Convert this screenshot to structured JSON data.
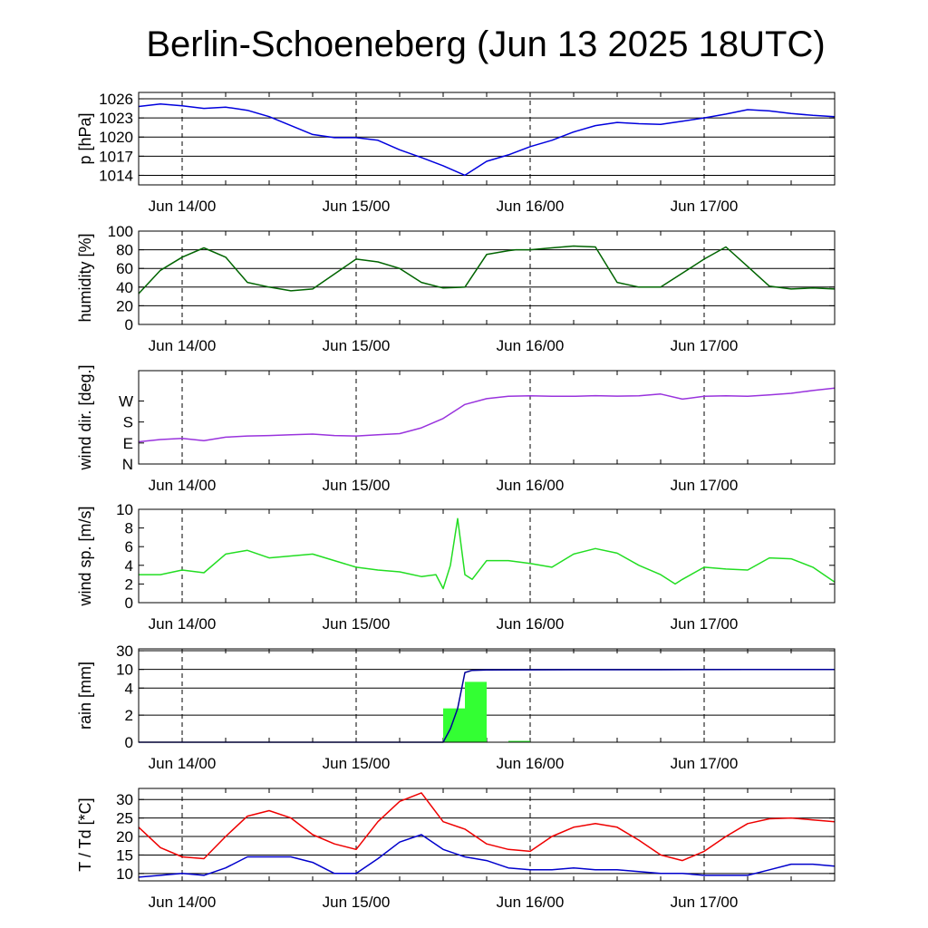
{
  "title": "Berlin-Schoeneberg (Jun 13 2025 18UTC)",
  "chart_data": {
    "type": "line",
    "x_tick_labels": [
      "Jun 14/00",
      "Jun 15/00",
      "Jun 16/00",
      "Jun 17/00"
    ],
    "x_range": [
      "2025-06-13 18:00",
      "2025-06-17 18:00"
    ],
    "panels": [
      {
        "id": "pressure",
        "type": "line",
        "ylabel": "p [hPa]",
        "ylim": [
          1012.5,
          1027
        ],
        "ytick_labels": [
          "1026",
          "1023",
          "1020",
          "1017",
          "1014"
        ],
        "ytick_values": [
          1026,
          1023,
          1020,
          1017,
          1014
        ],
        "grid": true,
        "series": [
          {
            "color": "#0000dd",
            "x_hours": [
              0,
              3,
              6,
              9,
              12,
              15,
              18,
              21,
              24,
              27,
              30,
              33,
              36,
              39,
              42,
              45,
              48,
              51,
              54,
              57,
              60,
              63,
              66,
              69,
              72,
              75,
              78,
              81,
              84,
              87,
              90,
              93,
              96
            ],
            "values": [
              1024.8,
              1025.2,
              1024.9,
              1024.5,
              1024.7,
              1024.2,
              1023.2,
              1021.8,
              1020.4,
              1019.9,
              1019.9,
              1019.5,
              1018.0,
              1016.8,
              1015.5,
              1014.0,
              1016.2,
              1017.2,
              1018.5,
              1019.5,
              1020.8,
              1021.8,
              1022.3,
              1022.1,
              1022.0,
              1022.5,
              1023.0,
              1023.6,
              1024.3,
              1024.1,
              1023.7,
              1023.4,
              1023.2
            ]
          }
        ]
      },
      {
        "id": "humidity",
        "type": "line",
        "ylabel": "humidity [%]",
        "ylim": [
          0,
          100
        ],
        "ytick_labels": [
          "100",
          "80",
          "60",
          "40",
          "20",
          "0"
        ],
        "ytick_values": [
          100,
          80,
          60,
          40,
          20,
          0
        ],
        "grid": true,
        "series": [
          {
            "color": "#006400",
            "x_hours": [
              0,
              3,
              6,
              9,
              12,
              15,
              18,
              21,
              24,
              27,
              30,
              33,
              36,
              39,
              42,
              45,
              48,
              51,
              52,
              54,
              57,
              60,
              63,
              66,
              69,
              72,
              75,
              78,
              81,
              84,
              87,
              90,
              93,
              96
            ],
            "values": [
              33,
              58,
              72,
              82,
              72,
              45,
              40,
              36,
              38,
              54,
              70,
              67,
              60,
              45,
              39,
              40,
              75,
              79,
              80,
              80,
              82,
              84,
              83,
              45,
              40,
              40,
              55,
              70,
              83,
              62,
              41,
              38,
              39,
              38
            ]
          }
        ]
      },
      {
        "id": "wind_direction",
        "type": "line",
        "ylabel": "wind dir. [deg.]",
        "ylim": [
          0,
          400
        ],
        "ytick_labels": [
          "W",
          "S",
          "E",
          "N"
        ],
        "ytick_values": [
          270,
          180,
          90,
          0
        ],
        "grid": false,
        "series": [
          {
            "color": "#9933dd",
            "x_hours": [
              0,
              3,
              6,
              9,
              12,
              15,
              18,
              21,
              24,
              27,
              30,
              33,
              36,
              39,
              42,
              45,
              48,
              51,
              54,
              57,
              60,
              63,
              66,
              69,
              72,
              75,
              78,
              81,
              84,
              87,
              90,
              93,
              96
            ],
            "values": [
              95,
              105,
              110,
              100,
              115,
              120,
              122,
              125,
              128,
              122,
              120,
              125,
              130,
              155,
              195,
              255,
              280,
              290,
              292,
              290,
              290,
              293,
              291,
              292,
              300,
              278,
              290,
              292,
              290,
              296,
              303,
              315,
              325
            ]
          }
        ]
      },
      {
        "id": "wind_speed",
        "type": "line",
        "ylabel": "wind sp. [m/s]",
        "ylim": [
          0,
          10
        ],
        "ytick_labels": [
          "10",
          "8",
          "6",
          "4",
          "2",
          "0"
        ],
        "ytick_values": [
          10,
          8,
          6,
          4,
          2,
          0
        ],
        "grid": false,
        "series": [
          {
            "color": "#22dd22",
            "x_hours": [
              0,
              3,
              6,
              9,
              12,
              15,
              18,
              21,
              24,
              27,
              30,
              33,
              36,
              39,
              41,
              42,
              43,
              44,
              45,
              46,
              48,
              51,
              54,
              57,
              60,
              63,
              66,
              69,
              72,
              74,
              75,
              78,
              81,
              84,
              87,
              90,
              93,
              96
            ],
            "values": [
              3.0,
              3.0,
              3.5,
              3.2,
              5.2,
              5.6,
              4.8,
              5.0,
              5.2,
              4.5,
              3.8,
              3.5,
              3.3,
              2.8,
              3.0,
              1.5,
              4.0,
              9.0,
              3.0,
              2.5,
              4.5,
              4.5,
              4.2,
              3.8,
              5.2,
              5.8,
              5.3,
              4.0,
              3.0,
              2.0,
              2.5,
              3.8,
              3.6,
              3.5,
              4.8,
              4.7,
              3.8,
              2.2
            ]
          }
        ]
      },
      {
        "id": "rain",
        "type": "bar",
        "ylabel": "rain [mm]",
        "ylim": [
          0,
          32
        ],
        "ytick_labels": [
          "30",
          "10",
          "4",
          "2",
          "0"
        ],
        "ytick_values": [
          30,
          10,
          4,
          2,
          0
        ],
        "grid": true,
        "bars": {
          "color": "#33ff33",
          "x_hours": [
            42,
            45,
            51
          ],
          "values": [
            2.5,
            6.0,
            0.1
          ]
        },
        "series": [
          {
            "name": "accumulated",
            "color": "#000099",
            "x_hours": [
              0,
              42,
              43,
              44,
              45,
              46,
              48,
              60,
              72,
              84,
              96
            ],
            "values": [
              0,
              0,
              1.0,
              2.5,
              9.0,
              9.7,
              9.8,
              9.9,
              9.9,
              10.0,
              10.0
            ]
          }
        ]
      },
      {
        "id": "temperature",
        "type": "line",
        "ylabel": "T / Td [*C]",
        "ylim": [
          8,
          33
        ],
        "ytick_labels": [
          "30",
          "25",
          "20",
          "15",
          "10"
        ],
        "ytick_values": [
          30,
          25,
          20,
          15,
          10
        ],
        "grid": true,
        "series": [
          {
            "color": "#ee0000",
            "x_hours": [
              0,
              3,
              6,
              9,
              12,
              15,
              18,
              21,
              24,
              27,
              30,
              33,
              36,
              39,
              42,
              45,
              48,
              51,
              54,
              57,
              60,
              63,
              66,
              69,
              72,
              75,
              78,
              81,
              84,
              87,
              90,
              93,
              96
            ],
            "values": [
              22.5,
              17.0,
              14.5,
              14.0,
              20.0,
              25.5,
              27.0,
              25.0,
              20.5,
              18.0,
              16.5,
              24.0,
              29.5,
              31.8,
              24.0,
              22.0,
              18.0,
              16.5,
              16.0,
              20.0,
              22.5,
              23.5,
              22.5,
              19.0,
              15.0,
              13.5,
              16.0,
              20.0,
              23.5,
              24.8,
              25.0,
              24.5,
              24.0
            ]
          },
          {
            "color": "#0000cc",
            "x_hours": [
              0,
              3,
              6,
              9,
              12,
              15,
              18,
              21,
              24,
              27,
              30,
              33,
              36,
              39,
              42,
              45,
              48,
              51,
              54,
              57,
              60,
              63,
              66,
              69,
              72,
              75,
              78,
              81,
              84,
              87,
              90,
              93,
              96
            ],
            "values": [
              9.0,
              9.5,
              10.0,
              9.5,
              11.5,
              14.5,
              14.5,
              14.5,
              13.0,
              10.0,
              10.0,
              14.0,
              18.5,
              20.5,
              16.5,
              14.5,
              13.5,
              11.5,
              11.0,
              11.0,
              11.5,
              11.0,
              11.0,
              10.5,
              10.0,
              10.0,
              9.5,
              9.5,
              9.5,
              11.0,
              12.5,
              12.5,
              12.0
            ]
          }
        ]
      }
    ]
  }
}
